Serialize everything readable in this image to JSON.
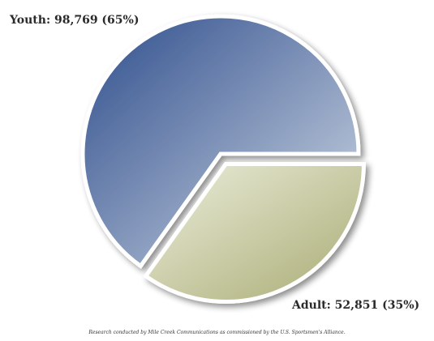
{
  "chart_data": {
    "type": "pie",
    "title": "",
    "slices": [
      {
        "label": "Youth",
        "value": 98769,
        "percent": 65,
        "display": "Youth: 98,769 (65%)",
        "color_from": "#2e4d8c",
        "color_to": "#d2dbe6"
      },
      {
        "label": "Adult",
        "value": 52851,
        "percent": 35,
        "display": "Adult: 52,851 (35%)",
        "color_from": "#a8ab72",
        "color_to": "#eceedd"
      }
    ],
    "footnote": "Research conducted by Mile Creek Communications as commissioned by the U.S. Sportsmen's Alliance.",
    "exploded_slice": "Adult"
  }
}
